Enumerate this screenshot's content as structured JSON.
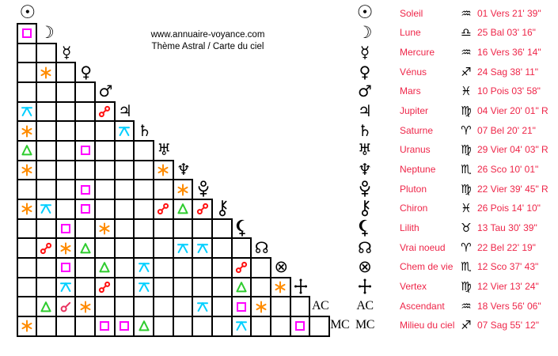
{
  "header": {
    "line1": "www.annuaire-voyance.com",
    "line2": "Thème Astral / Carte du ciel"
  },
  "palette": {
    "legend_text": "#ee2649",
    "grid_line": "#000000"
  },
  "chart_data": {
    "type": "table",
    "title": "Thème Astral / Carte du ciel",
    "subtitle": "www.annuaire-voyance.com",
    "description": "Triangular astrological aspect grid (17 points) with planet legend and zodiac positions",
    "aspect_colors": {
      "conjunction": "#e8315e",
      "opposition": "#ff1111",
      "square": "#ff00ff",
      "trine": "#2ecc2e",
      "sextile": "#ff8c00",
      "quincunx": "#00cfff"
    },
    "points": [
      {
        "id": "sun",
        "name": "Soleil",
        "sign": "aquarius",
        "position": "01 Vers 21' 39\""
      },
      {
        "id": "moon",
        "name": "Lune",
        "sign": "libra",
        "position": "25 Bal 03' 16\""
      },
      {
        "id": "mercury",
        "name": "Mercure",
        "sign": "aquarius",
        "position": "16 Vers 36' 14\""
      },
      {
        "id": "venus",
        "name": "Vénus",
        "sign": "sagittarius",
        "position": "24 Sag 38' 11\""
      },
      {
        "id": "mars",
        "name": "Mars",
        "sign": "pisces",
        "position": "10 Pois 03' 58\""
      },
      {
        "id": "jupiter",
        "name": "Jupiter",
        "sign": "virgo",
        "position": "04 Vier 20' 01\" R"
      },
      {
        "id": "saturn",
        "name": "Saturne",
        "sign": "aries",
        "position": "07 Bel 20' 21\""
      },
      {
        "id": "uranus",
        "name": "Uranus",
        "sign": "virgo",
        "position": "29 Vier 04' 03\" R"
      },
      {
        "id": "neptune",
        "name": "Neptune",
        "sign": "scorpio",
        "position": "26 Sco 10' 01\""
      },
      {
        "id": "pluto",
        "name": "Pluton",
        "sign": "virgo",
        "position": "22 Vier 39' 45\" R"
      },
      {
        "id": "chiron",
        "name": "Chiron",
        "sign": "pisces",
        "position": "26 Pois 14' 10\""
      },
      {
        "id": "lilith",
        "name": "Lilith",
        "sign": "taurus",
        "position": "13 Tau 30' 39\""
      },
      {
        "id": "node",
        "name": "Vrai noeud",
        "sign": "aries",
        "position": "22 Bel 22' 19\""
      },
      {
        "id": "pof",
        "name": "Chem de vie",
        "sign": "scorpio",
        "position": "12 Sco 37' 43\""
      },
      {
        "id": "vertex",
        "name": "Vertex",
        "sign": "virgo",
        "position": "12 Vier 13' 24\""
      },
      {
        "id": "ac",
        "name": "Ascendant",
        "sign": "aquarius",
        "position": "18 Vers 56' 06\""
      },
      {
        "id": "mc",
        "name": "Milieu du ciel",
        "sign": "sagittarius",
        "position": "07 Sag 55' 12\""
      }
    ],
    "aspects": [
      [
        2,
        1,
        "square"
      ],
      [
        4,
        2,
        "sextile"
      ],
      [
        6,
        1,
        "quincunx"
      ],
      [
        6,
        5,
        "opposition"
      ],
      [
        7,
        1,
        "sextile"
      ],
      [
        7,
        6,
        "quincunx"
      ],
      [
        8,
        1,
        "trine"
      ],
      [
        8,
        4,
        "square"
      ],
      [
        9,
        1,
        "sextile"
      ],
      [
        9,
        8,
        "sextile"
      ],
      [
        10,
        4,
        "square"
      ],
      [
        10,
        9,
        "sextile"
      ],
      [
        11,
        1,
        "sextile"
      ],
      [
        11,
        2,
        "quincunx"
      ],
      [
        11,
        4,
        "square"
      ],
      [
        11,
        8,
        "opposition"
      ],
      [
        11,
        9,
        "trine"
      ],
      [
        11,
        10,
        "opposition"
      ],
      [
        12,
        3,
        "square"
      ],
      [
        12,
        5,
        "sextile"
      ],
      [
        13,
        2,
        "opposition"
      ],
      [
        13,
        3,
        "sextile"
      ],
      [
        13,
        4,
        "trine"
      ],
      [
        13,
        9,
        "quincunx"
      ],
      [
        13,
        10,
        "quincunx"
      ],
      [
        14,
        3,
        "square"
      ],
      [
        14,
        5,
        "trine"
      ],
      [
        14,
        7,
        "quincunx"
      ],
      [
        14,
        12,
        "opposition"
      ],
      [
        15,
        3,
        "quincunx"
      ],
      [
        15,
        5,
        "opposition"
      ],
      [
        15,
        7,
        "quincunx"
      ],
      [
        15,
        12,
        "trine"
      ],
      [
        15,
        14,
        "sextile"
      ],
      [
        16,
        2,
        "trine"
      ],
      [
        16,
        3,
        "conjunction"
      ],
      [
        16,
        4,
        "sextile"
      ],
      [
        16,
        10,
        "quincunx"
      ],
      [
        16,
        12,
        "square"
      ],
      [
        16,
        13,
        "sextile"
      ],
      [
        17,
        1,
        "sextile"
      ],
      [
        17,
        5,
        "square"
      ],
      [
        17,
        6,
        "square"
      ],
      [
        17,
        7,
        "trine"
      ],
      [
        17,
        12,
        "quincunx"
      ],
      [
        17,
        15,
        "square"
      ]
    ]
  }
}
